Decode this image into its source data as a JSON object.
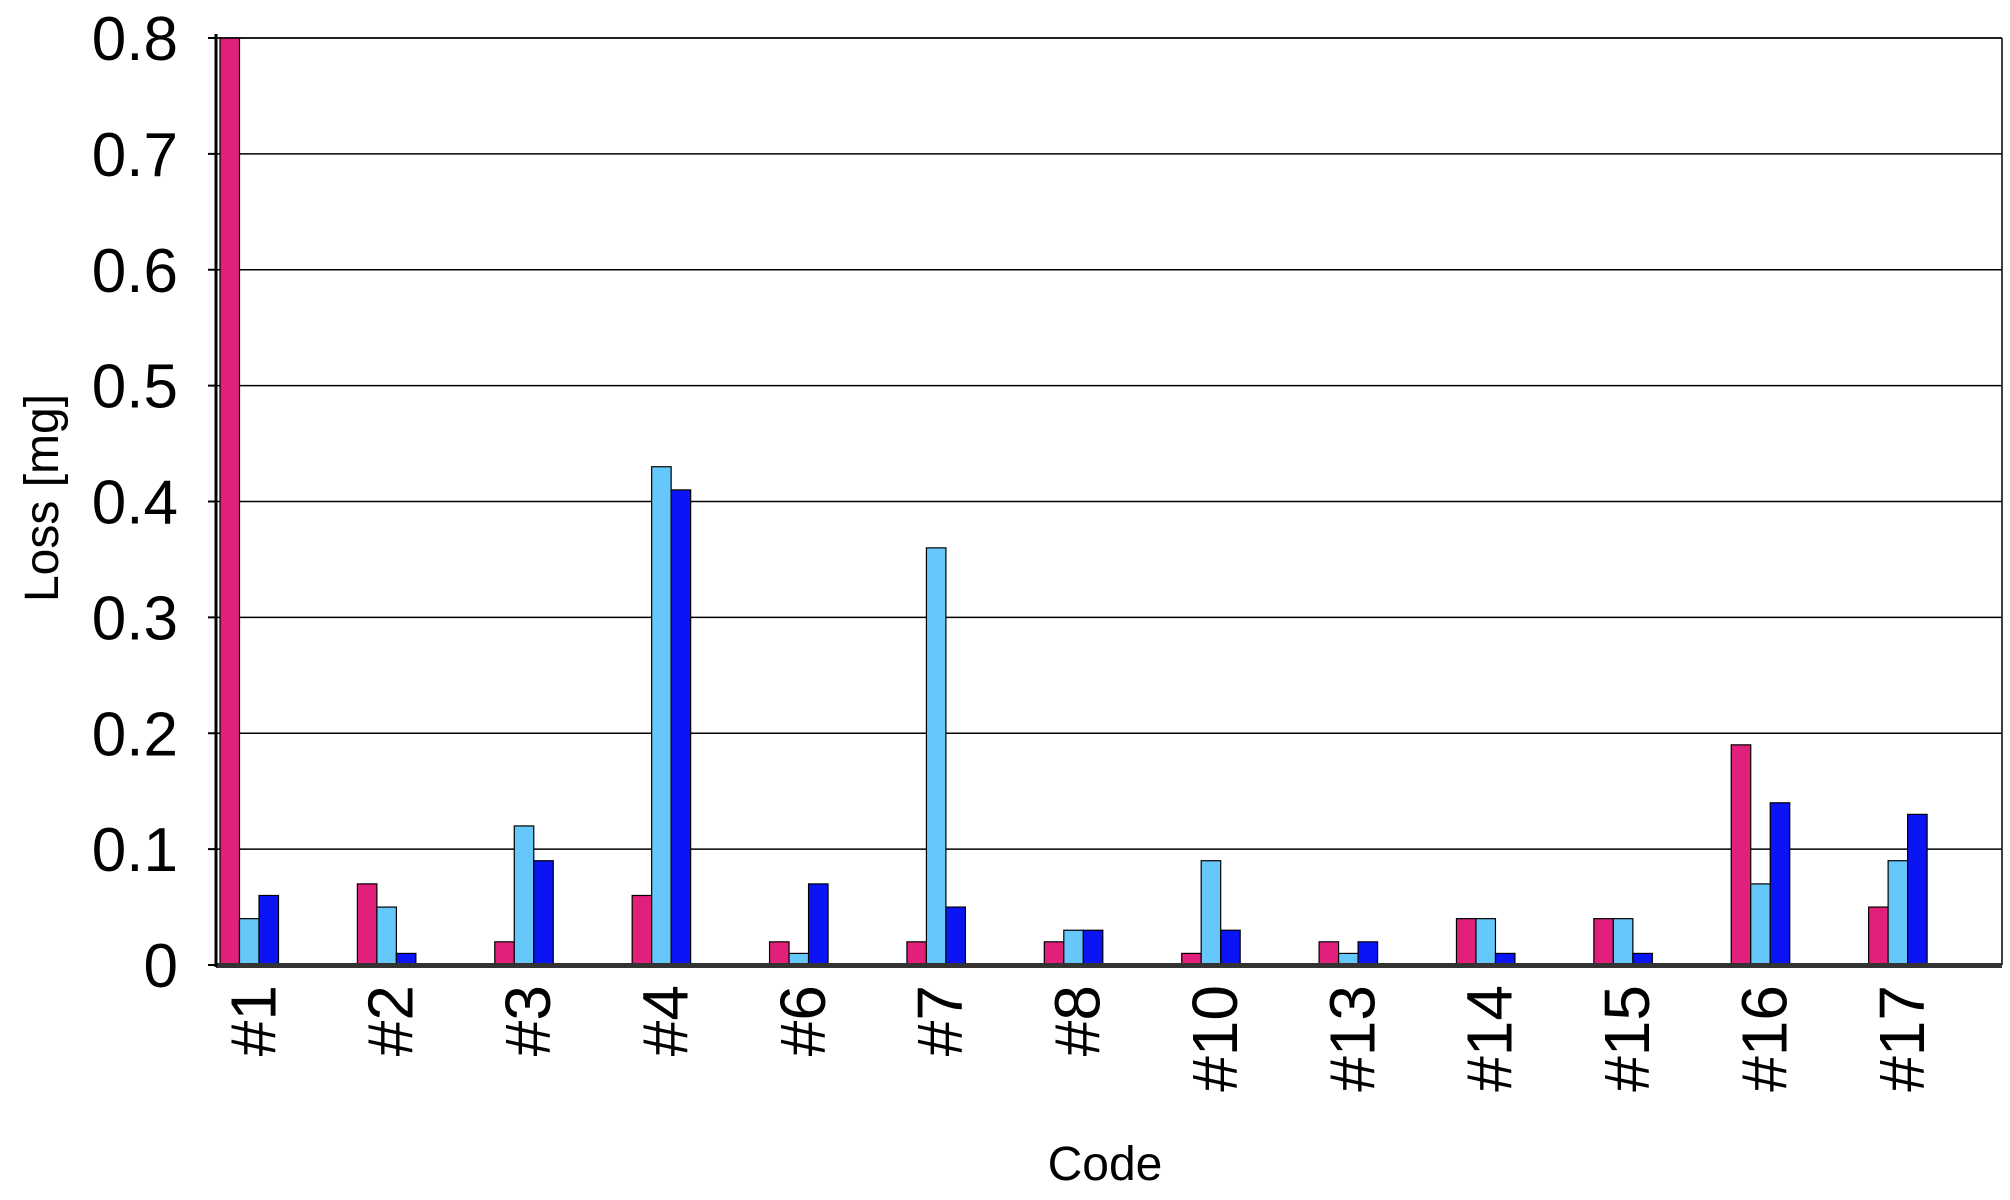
{
  "chart_data": {
    "type": "bar",
    "title": "",
    "xlabel": "Code",
    "ylabel": "Loss [mg]",
    "ylim": [
      0,
      0.8
    ],
    "yticks": [
      "0",
      "0.1",
      "0.2",
      "0.3",
      "0.4",
      "0.5",
      "0.6",
      "0.7",
      "0.8"
    ],
    "grid": true,
    "legend": "none",
    "categories": [
      "#1",
      "#2",
      "#3",
      "#4",
      "#6",
      "#7",
      "#8",
      "#10",
      "#13",
      "#14",
      "#15",
      "#16",
      "#17"
    ],
    "series": [
      {
        "color": "#e0207a",
        "values": [
          0.8,
          0.07,
          0.02,
          0.06,
          0.02,
          0.02,
          0.02,
          0.01,
          0.02,
          0.04,
          0.04,
          0.19,
          0.05
        ]
      },
      {
        "color": "#66c8fa",
        "values": [
          0.04,
          0.05,
          0.12,
          0.43,
          0.01,
          0.36,
          0.03,
          0.09,
          0.01,
          0.04,
          0.04,
          0.07,
          0.09
        ]
      },
      {
        "color": "#0a14f5",
        "values": [
          0.06,
          0.01,
          0.09,
          0.41,
          0.07,
          0.05,
          0.03,
          0.03,
          0.02,
          0.01,
          0.01,
          0.14,
          0.13
        ]
      }
    ]
  }
}
